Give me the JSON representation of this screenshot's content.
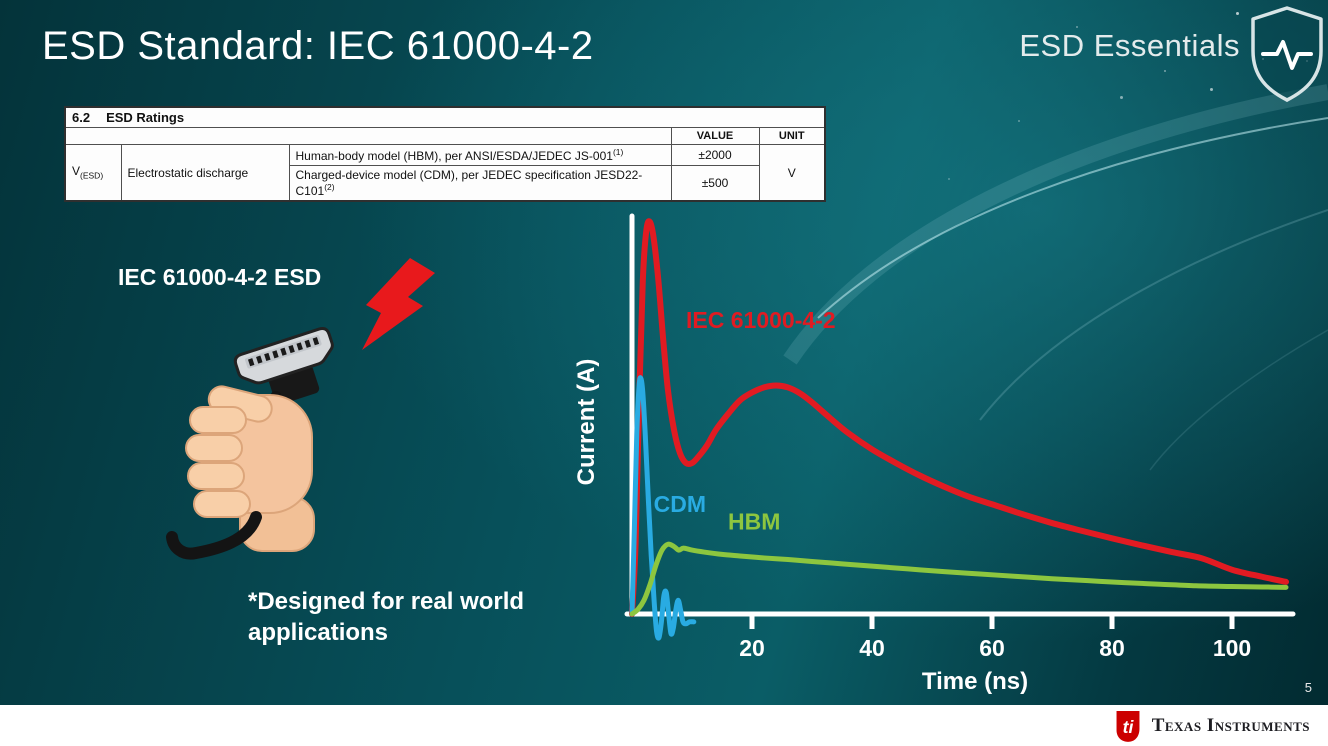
{
  "slide": {
    "title": "ESD Standard: IEC 61000-4-2",
    "brand": "ESD Essentials",
    "page_number": "5",
    "footer_brand": "Texas Instruments"
  },
  "ratings_table": {
    "section_no": "6.2",
    "section_title": "ESD Ratings",
    "headers": {
      "value": "VALUE",
      "unit": "UNIT"
    },
    "symbol_base": "V",
    "symbol_sub": "(ESD)",
    "parameter": "Electrostatic discharge",
    "rows": [
      {
        "text": "Human-body model (HBM), per ANSI/ESDA/JEDEC JS-001",
        "sup": "(1)",
        "value": "±2000"
      },
      {
        "text": "Charged-device model (CDM), per JEDEC specification JESD22-C101",
        "sup": "(2)",
        "value": "±500"
      }
    ],
    "unit": "V"
  },
  "illustration": {
    "label": "IEC 61000-4-2 ESD",
    "note_line1": "*Designed for real world",
    "note_line2": "applications"
  },
  "chart_data": {
    "type": "line",
    "title": "",
    "xlabel": "Time (ns)",
    "ylabel": "Current (A)",
    "xlim": [
      0,
      110
    ],
    "x_ticks": [
      20,
      40,
      60,
      80,
      100
    ],
    "y_axis_numeric": false,
    "grid": false,
    "legend_position": "inline-labels",
    "amplitude_note": "y values are relative current amplitude, IEC peak = 1.0",
    "series": [
      {
        "name": "IEC 61000-4-2",
        "color": "#e11b22",
        "width": 6,
        "label_at": [
          9,
          0.73
        ],
        "points": [
          [
            0,
            0
          ],
          [
            0.6,
            0.18
          ],
          [
            1.2,
            0.55
          ],
          [
            1.8,
            0.85
          ],
          [
            2.4,
            0.98
          ],
          [
            3,
            1.0
          ],
          [
            3.6,
            0.96
          ],
          [
            4.4,
            0.85
          ],
          [
            5.2,
            0.7
          ],
          [
            6,
            0.57
          ],
          [
            7,
            0.47
          ],
          [
            8,
            0.41
          ],
          [
            9,
            0.385
          ],
          [
            10,
            0.385
          ],
          [
            11,
            0.4
          ],
          [
            12.5,
            0.43
          ],
          [
            14,
            0.47
          ],
          [
            16,
            0.51
          ],
          [
            18,
            0.545
          ],
          [
            20,
            0.565
          ],
          [
            22,
            0.578
          ],
          [
            24,
            0.583
          ],
          [
            26,
            0.578
          ],
          [
            28,
            0.563
          ],
          [
            30,
            0.54
          ],
          [
            33,
            0.5
          ],
          [
            36,
            0.462
          ],
          [
            40,
            0.42
          ],
          [
            44,
            0.385
          ],
          [
            48,
            0.353
          ],
          [
            52,
            0.325
          ],
          [
            56,
            0.3
          ],
          [
            60,
            0.28
          ],
          [
            65,
            0.255
          ],
          [
            70,
            0.232
          ],
          [
            75,
            0.212
          ],
          [
            80,
            0.193
          ],
          [
            85,
            0.175
          ],
          [
            90,
            0.158
          ],
          [
            95,
            0.142
          ],
          [
            100,
            0.113
          ],
          [
            105,
            0.095
          ],
          [
            109,
            0.082
          ]
        ]
      },
      {
        "name": "CDM",
        "color": "#29abe2",
        "width": 5,
        "label_at": [
          3.6,
          0.26
        ],
        "points": [
          [
            0,
            0
          ],
          [
            0.4,
            0.22
          ],
          [
            0.8,
            0.46
          ],
          [
            1.2,
            0.585
          ],
          [
            1.5,
            0.6
          ],
          [
            1.8,
            0.565
          ],
          [
            2.2,
            0.46
          ],
          [
            2.7,
            0.3
          ],
          [
            3.2,
            0.15
          ],
          [
            3.7,
            0.03
          ],
          [
            4.1,
            -0.045
          ],
          [
            4.5,
            -0.06
          ],
          [
            4.9,
            -0.02
          ],
          [
            5.3,
            0.045
          ],
          [
            5.7,
            0.055
          ],
          [
            6.1,
            0.0
          ],
          [
            6.5,
            -0.05
          ],
          [
            6.9,
            -0.035
          ],
          [
            7.3,
            0.01
          ],
          [
            7.7,
            0.035
          ],
          [
            8.1,
            0.01
          ],
          [
            8.5,
            -0.02
          ],
          [
            9,
            -0.025
          ],
          [
            9.6,
            -0.02
          ],
          [
            10.3,
            -0.02
          ]
        ]
      },
      {
        "name": "HBM",
        "color": "#8dc63f",
        "width": 5,
        "label_at": [
          16,
          0.215
        ],
        "points": [
          [
            0,
            0
          ],
          [
            1,
            0.012
          ],
          [
            2,
            0.035
          ],
          [
            3,
            0.075
          ],
          [
            4,
            0.125
          ],
          [
            5,
            0.163
          ],
          [
            6,
            0.178
          ],
          [
            7,
            0.172
          ],
          [
            7.8,
            0.163
          ],
          [
            8.6,
            0.168
          ],
          [
            10,
            0.163
          ],
          [
            12,
            0.158
          ],
          [
            15,
            0.152
          ],
          [
            18,
            0.148
          ],
          [
            22,
            0.143
          ],
          [
            26,
            0.139
          ],
          [
            30,
            0.134
          ],
          [
            35,
            0.128
          ],
          [
            40,
            0.122
          ],
          [
            46,
            0.115
          ],
          [
            52,
            0.108
          ],
          [
            58,
            0.102
          ],
          [
            64,
            0.096
          ],
          [
            70,
            0.09
          ],
          [
            76,
            0.085
          ],
          [
            82,
            0.08
          ],
          [
            88,
            0.076
          ],
          [
            94,
            0.072
          ],
          [
            100,
            0.07
          ],
          [
            105,
            0.069
          ],
          [
            109,
            0.068
          ]
        ]
      }
    ]
  }
}
